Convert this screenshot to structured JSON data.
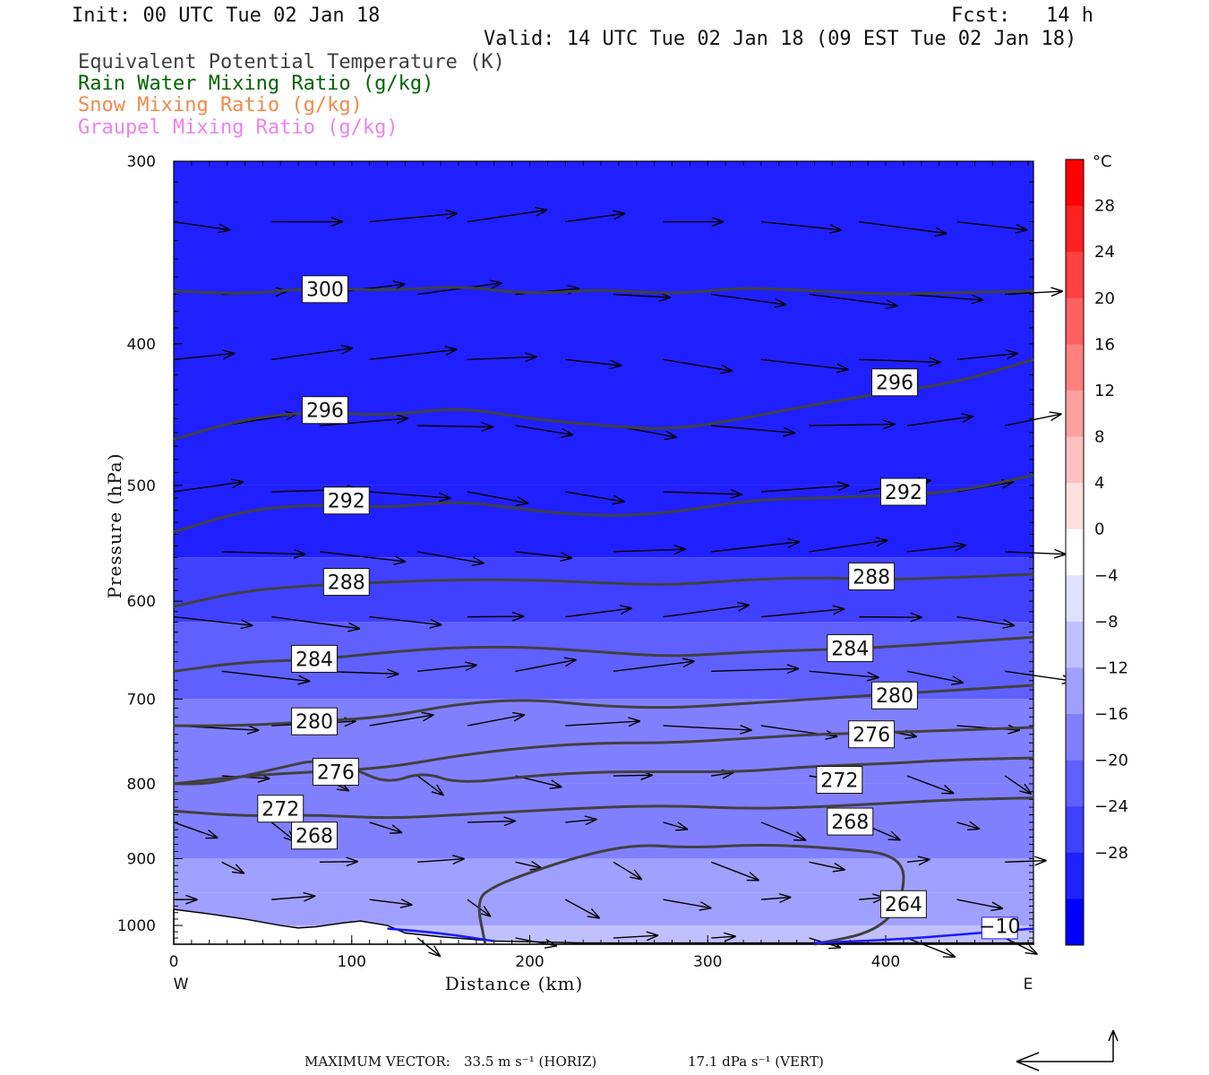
{
  "header": {
    "init": "Init: 00 UTC Tue 02 Jan 18",
    "fcst": "Fcst:   14 h",
    "valid": "Valid: 14 UTC Tue 02 Jan 18 (09 EST Tue 02 Jan 18)",
    "legend": [
      {
        "text": "Equivalent Potential Temperature (K)",
        "color": "#404040"
      },
      {
        "text": "Rain Water Mixing Ratio (g/kg)",
        "color": "#006400"
      },
      {
        "text": "Snow Mixing Ratio (g/kg)",
        "color": "#f08a4b"
      },
      {
        "text": "Graupel Mixing Ratio (g/kg)",
        "color": "#ee82ee"
      }
    ]
  },
  "chart_data": {
    "type": "cross-section",
    "xlabel": "Distance (km)",
    "ylabel": "Pressure (hPa)",
    "xlim": [
      0,
      483
    ],
    "ylim": [
      1030,
      300
    ],
    "y_log": true,
    "xticks": [
      0,
      100,
      200,
      300,
      400
    ],
    "yticks": [
      300,
      400,
      500,
      600,
      700,
      800,
      900,
      1000
    ],
    "x_end_labels": {
      "left": "W",
      "right": "E"
    },
    "colorbar": {
      "unit": "°C",
      "ticks": [
        28,
        24,
        20,
        16,
        12,
        8,
        4,
        0,
        -4,
        -8,
        -12,
        -16,
        -20,
        -24,
        -28
      ],
      "colors": [
        "#ff0000",
        "#ff2020",
        "#ff4040",
        "#ff6060",
        "#ff8080",
        "#ffa0a0",
        "#ffc0c0",
        "#ffe0e0",
        "#ffffff",
        "#e0e0ff",
        "#c0c0ff",
        "#a0a0ff",
        "#8080ff",
        "#6060ff",
        "#4040ff",
        "#2020ff",
        "#0000ff"
      ]
    },
    "temperature_fill": [
      {
        "p": 300,
        "t": -30
      },
      {
        "p": 500,
        "t": -30
      },
      {
        "p": 560,
        "t": -27
      },
      {
        "p": 620,
        "t": -24
      },
      {
        "p": 700,
        "t": -21
      },
      {
        "p": 800,
        "t": -18
      },
      {
        "p": 900,
        "t": -15
      },
      {
        "p": 950,
        "t": -13
      },
      {
        "p": 1000,
        "t": -11
      },
      {
        "p": 1030,
        "t": -10
      }
    ],
    "theta_e_contours": [
      {
        "label": "300",
        "x": [
          0,
          40,
          80,
          120,
          160,
          200,
          240,
          280,
          320,
          360,
          400,
          440,
          483
        ],
        "p": [
          368,
          370,
          366,
          368,
          365,
          370,
          367,
          370,
          366,
          368,
          370,
          369,
          368
        ],
        "label_at": [
          85,
          367
        ]
      },
      {
        "label": "296",
        "x": [
          0,
          40,
          80,
          120,
          160,
          200,
          240,
          280,
          320,
          360,
          400,
          440,
          483
        ],
        "p": [
          465,
          450,
          445,
          448,
          442,
          450,
          455,
          458,
          450,
          440,
          432,
          425,
          410
        ],
        "label_at": [
          85,
          444
        ],
        "label_at2": [
          405,
          425
        ]
      },
      {
        "label": "292",
        "x": [
          0,
          40,
          80,
          120,
          160,
          200,
          240,
          280,
          320,
          360,
          400,
          440,
          483
        ],
        "p": [
          538,
          520,
          515,
          518,
          512,
          520,
          525,
          522,
          512,
          510,
          508,
          505,
          492
        ],
        "label_at": [
          97,
          512
        ],
        "label_at2": [
          410,
          505
        ]
      },
      {
        "label": "288",
        "x": [
          0,
          40,
          80,
          120,
          160,
          200,
          240,
          280,
          320,
          360,
          400,
          440,
          483
        ],
        "p": [
          605,
          590,
          585,
          582,
          580,
          580,
          583,
          585,
          580,
          578,
          580,
          578,
          575
        ],
        "label_at": [
          97,
          582
        ],
        "label_at2": [
          392,
          577
        ]
      },
      {
        "label": "284",
        "x": [
          0,
          40,
          80,
          120,
          160,
          200,
          240,
          280,
          320,
          360,
          400,
          440,
          483
        ],
        "p": [
          670,
          660,
          658,
          650,
          645,
          645,
          650,
          655,
          650,
          648,
          645,
          640,
          635
        ],
        "label_at": [
          79,
          657
        ],
        "label_at2": [
          380,
          646
        ]
      },
      {
        "label": "280",
        "x": [
          0,
          40,
          80,
          120,
          160,
          200,
          240,
          280,
          320,
          360,
          400,
          440,
          483
        ],
        "p": [
          730,
          730,
          725,
          720,
          705,
          700,
          708,
          710,
          705,
          700,
          695,
          690,
          685
        ],
        "label_at": [
          79,
          725
        ],
        "label_at2": [
          405,
          696
        ]
      },
      {
        "label": "276",
        "x": [
          0,
          40,
          80,
          120,
          160,
          200,
          240,
          280,
          320,
          360,
          400,
          440,
          483
        ],
        "p": [
          800,
          790,
          785,
          780,
          765,
          755,
          750,
          750,
          745,
          740,
          738,
          735,
          732
        ],
        "label_at": [
          91,
          785
        ],
        "label_at2": [
          392,
          740
        ]
      },
      {
        "label": "272",
        "x": [
          0,
          20,
          40,
          60,
          80,
          100,
          120,
          140,
          160,
          200,
          240,
          280,
          320,
          360,
          400,
          440,
          483
        ],
        "p": [
          800,
          800,
          790,
          780,
          770,
          780,
          800,
          785,
          800,
          790,
          785,
          785,
          785,
          778,
          775,
          770,
          768
        ],
        "label_at": [
          60,
          832
        ],
        "label_at2": [
          374,
          795
        ]
      },
      {
        "label": "268",
        "x": [
          0,
          40,
          80,
          120,
          160,
          200,
          240,
          280,
          320,
          360,
          400,
          440,
          483
        ],
        "p": [
          835,
          842,
          840,
          845,
          840,
          835,
          830,
          828,
          832,
          830,
          825,
          820,
          818
        ],
        "label_at": [
          79,
          868
        ],
        "label_at2": [
          380,
          849
        ]
      },
      {
        "label": "264",
        "x": [
          175,
          170,
          180,
          200,
          230,
          260,
          290,
          330,
          370,
          410,
          410,
          395,
          360
        ],
        "p": [
          1030,
          960,
          940,
          920,
          895,
          880,
          885,
          880,
          885,
          895,
          960,
          1010,
          1030
        ],
        "label_at": [
          410,
          967
        ]
      }
    ],
    "temperature_contour": {
      "label": "−10",
      "color": "#1a1aff",
      "x": [
        120,
        150,
        180
      ],
      "p": [
        1005,
        1012,
        1025
      ],
      "x2": [
        360,
        410,
        460,
        483
      ],
      "p2": [
        1028,
        1022,
        1010,
        1005
      ],
      "label_at": [
        464,
        1004
      ]
    },
    "max_vector": {
      "horiz": "33.5 m s⁻¹ (HORIZ)",
      "vert": "17.1 dPa s⁻¹ (VERT)"
    }
  },
  "footer": {
    "label": "MAXIMUM VECTOR:",
    "horiz": "33.5 m s⁻¹ (HORIZ)",
    "vert": "17.1 dPa s⁻¹ (VERT)"
  }
}
